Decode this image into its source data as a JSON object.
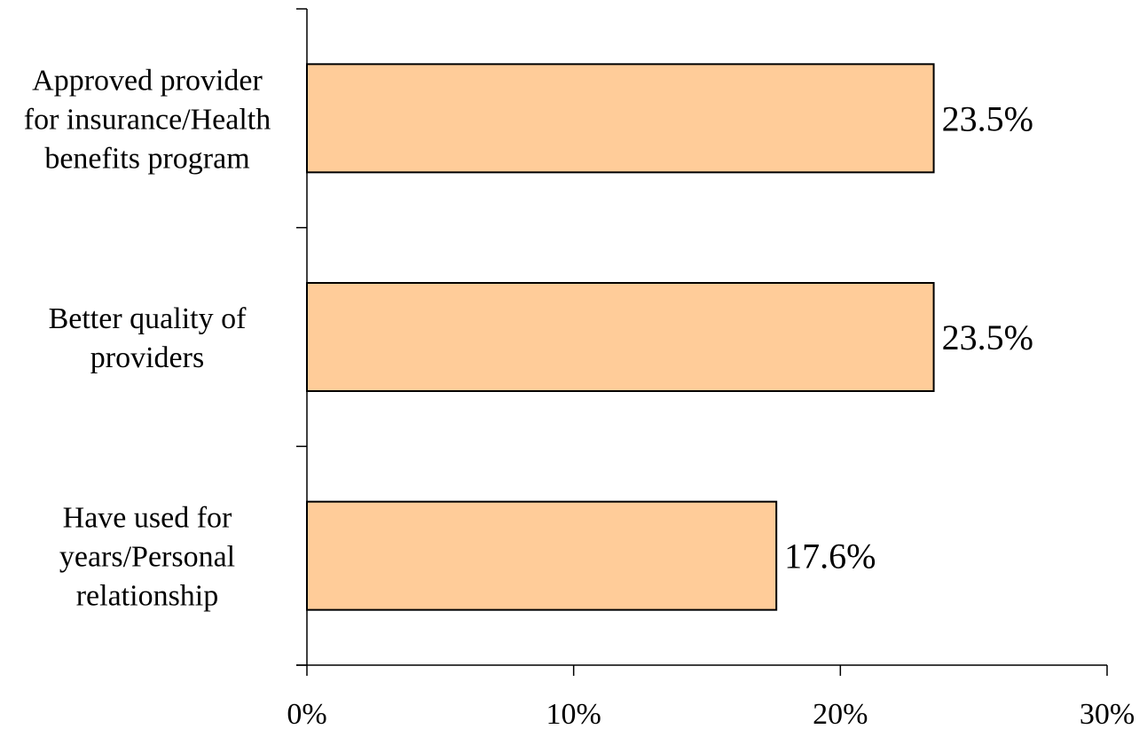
{
  "chart_data": {
    "type": "bar",
    "orientation": "horizontal",
    "categories": [
      "Approved provider for insurance/Health benefits program",
      "Better quality of providers",
      "Have used for years/Personal relationship"
    ],
    "category_lines": [
      [
        "Approved provider",
        "for insurance/Health",
        "benefits program"
      ],
      [
        "Better quality of",
        "providers"
      ],
      [
        "Have used for",
        "years/Personal",
        "relationship"
      ]
    ],
    "values": [
      23.5,
      23.5,
      17.6
    ],
    "data_labels": [
      "23.5%",
      "23.5%",
      "17.6%"
    ],
    "xlim": [
      0,
      30
    ],
    "x_ticks": [
      0,
      10,
      20,
      30
    ],
    "x_tick_labels": [
      "0%",
      "10%",
      "20%",
      "30%"
    ],
    "title": "",
    "xlabel": "",
    "ylabel": "",
    "grid": false,
    "legend": "none",
    "colors": {
      "bar_fill": "#FFCC99",
      "bar_stroke": "#000000",
      "axis": "#000000",
      "text": "#000000"
    }
  }
}
